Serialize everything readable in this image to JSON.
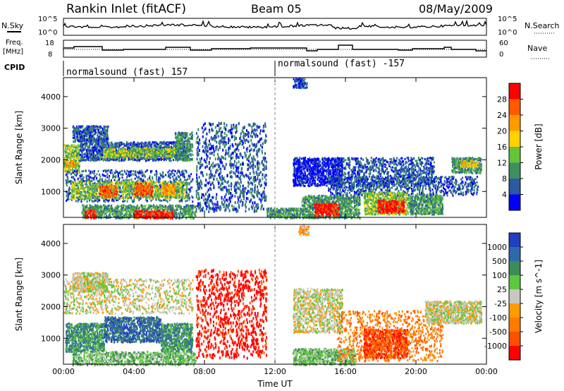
{
  "header": {
    "station": "Rankin Inlet (fitACF)",
    "beam": "Beam 05",
    "date": "08/May/2009"
  },
  "top_panels": {
    "left_labels": {
      "nsky": "N.Sky",
      "freq_line1": "Freq.",
      "freq_line2": "[MHz]",
      "cpid": "CPID"
    },
    "right_labels": {
      "nsearch": "N.Search",
      "nave": "Nave"
    },
    "noise_axis": {
      "top": "10^5",
      "bottom": "10^0"
    },
    "freq_axis": {
      "top": "18",
      "bottom": "8"
    },
    "nave_axis": {
      "top": "60",
      "bottom": "0"
    },
    "cpid_segments": [
      {
        "label": "normalsound (fast) 157",
        "start_hour": 0
      },
      {
        "label": "normalsound (fast) -157",
        "start_hour": 12
      }
    ]
  },
  "chart_data": [
    {
      "type": "heatmap",
      "name": "power",
      "xlabel": "",
      "ylabel": "Slant Range [km]",
      "x_range_hours": [
        0,
        24
      ],
      "ylim": [
        180,
        4600
      ],
      "x_ticks": [
        "00:00",
        "04:00",
        "08:00",
        "12:00",
        "16:00",
        "20:00",
        "00:00"
      ],
      "y_ticks": [
        1000,
        2000,
        3000,
        4000
      ],
      "colorbar": {
        "label": "Power [dB]",
        "ticks": [
          "28",
          "24",
          "20",
          "16",
          "12",
          "8",
          "4"
        ],
        "colors": [
          "#ff0000",
          "#ff5a00",
          "#ff9900",
          "#ffd200",
          "#66c33a",
          "#3c8f5e",
          "#2a5aa0",
          "#0000ff"
        ]
      },
      "patches": [
        {
          "t0": 0.0,
          "t1": 0.9,
          "r0": 1600,
          "r1": 2500,
          "level": 4
        },
        {
          "t0": 0.1,
          "t1": 0.6,
          "r0": 1800,
          "r1": 2000,
          "level": 2
        },
        {
          "t0": 0.9,
          "t1": 2.0,
          "r0": 2000,
          "r1": 2700,
          "level": 6
        },
        {
          "t0": 2.0,
          "t1": 7.0,
          "r0": 2000,
          "r1": 2600,
          "level": 6
        },
        {
          "t0": 2.2,
          "t1": 6.5,
          "r0": 2100,
          "r1": 2400,
          "level": 4
        },
        {
          "t0": 6.3,
          "t1": 7.3,
          "r0": 2000,
          "r1": 2900,
          "level": 5
        },
        {
          "t0": 0.5,
          "t1": 2.5,
          "r0": 2600,
          "r1": 3100,
          "level": 6
        },
        {
          "t0": 0.1,
          "t1": 7.3,
          "r0": 700,
          "r1": 1700,
          "level": 6
        },
        {
          "t0": 0.4,
          "t1": 7.0,
          "r0": 800,
          "r1": 1350,
          "level": 4
        },
        {
          "t0": 2.0,
          "t1": 3.0,
          "r0": 850,
          "r1": 1200,
          "level": 1
        },
        {
          "t0": 4.0,
          "t1": 5.0,
          "r0": 900,
          "r1": 1300,
          "level": 1
        },
        {
          "t0": 5.5,
          "t1": 6.3,
          "r0": 900,
          "r1": 1250,
          "level": 2
        },
        {
          "t0": 1.0,
          "t1": 7.5,
          "r0": 180,
          "r1": 600,
          "level": 5
        },
        {
          "t0": 1.2,
          "t1": 1.8,
          "r0": 180,
          "r1": 450,
          "level": 0
        },
        {
          "t0": 4.0,
          "t1": 6.2,
          "r0": 180,
          "r1": 420,
          "level": 0
        },
        {
          "t0": 7.5,
          "t1": 11.5,
          "r0": 400,
          "r1": 3200,
          "level": 6
        },
        {
          "t0": 11.5,
          "t1": 13.5,
          "r0": 180,
          "r1": 500,
          "level": 5
        },
        {
          "t0": 13.0,
          "t1": 15.8,
          "r0": 1200,
          "r1": 2100,
          "level": 7
        },
        {
          "t0": 13.5,
          "t1": 16.8,
          "r0": 180,
          "r1": 900,
          "level": 5
        },
        {
          "t0": 14.2,
          "t1": 15.6,
          "r0": 250,
          "r1": 650,
          "level": 0
        },
        {
          "t0": 15.5,
          "t1": 21.0,
          "r0": 1200,
          "r1": 2100,
          "level": 6
        },
        {
          "t0": 15.0,
          "t1": 23.5,
          "r0": 900,
          "r1": 1500,
          "level": 6
        },
        {
          "t0": 17.0,
          "t1": 19.5,
          "r0": 300,
          "r1": 1000,
          "level": 4
        },
        {
          "t0": 17.8,
          "t1": 19.3,
          "r0": 350,
          "r1": 750,
          "level": 0
        },
        {
          "t0": 19.5,
          "t1": 21.5,
          "r0": 300,
          "r1": 900,
          "level": 5
        },
        {
          "t0": 22.0,
          "t1": 23.7,
          "r0": 1600,
          "r1": 2100,
          "level": 5
        },
        {
          "t0": 22.5,
          "t1": 23.5,
          "r0": 1800,
          "r1": 2000,
          "level": 3
        },
        {
          "t0": 13.0,
          "t1": 13.8,
          "r0": 4300,
          "r1": 4600,
          "level": 6
        }
      ]
    },
    {
      "type": "heatmap",
      "name": "velocity",
      "xlabel": "Time UT",
      "ylabel": "Slant Range [km]",
      "x_range_hours": [
        0,
        24
      ],
      "ylim": [
        180,
        4600
      ],
      "x_ticks": [
        "00:00",
        "04:00",
        "08:00",
        "12:00",
        "16:00",
        "20:00",
        "00:00"
      ],
      "y_ticks": [
        1000,
        2000,
        3000,
        4000
      ],
      "colorbar": {
        "label": "Velocity [m s^-1]",
        "ticks": [
          "1000",
          "500",
          "100",
          "25",
          "-25",
          "-100",
          "-500",
          "-1000"
        ],
        "colors": [
          "#1f3fbf",
          "#2e6aa8",
          "#3d8a5a",
          "#5cc83c",
          "#c8c8c0",
          "#ff9a00",
          "#ff7a00",
          "#ff5000",
          "#ff0000"
        ]
      },
      "patches": [
        {
          "t0": 0.0,
          "t1": 7.3,
          "r0": 1800,
          "r1": 2900,
          "level": 4
        },
        {
          "t0": 0.5,
          "t1": 2.5,
          "r0": 2500,
          "r1": 3100,
          "level": 4
        },
        {
          "t0": 0.1,
          "t1": 2.3,
          "r0": 600,
          "r1": 1500,
          "level": 2
        },
        {
          "t0": 2.3,
          "t1": 5.5,
          "r0": 900,
          "r1": 1700,
          "level": 1
        },
        {
          "t0": 5.5,
          "t1": 7.3,
          "r0": 600,
          "r1": 1500,
          "level": 2
        },
        {
          "t0": 0.5,
          "t1": 7.5,
          "r0": 180,
          "r1": 600,
          "level": 3
        },
        {
          "t0": 7.5,
          "t1": 11.5,
          "r0": 400,
          "r1": 3200,
          "level": 8
        },
        {
          "t0": 13.0,
          "t1": 15.8,
          "r0": 1200,
          "r1": 2600,
          "level": 4
        },
        {
          "t0": 13.0,
          "t1": 16.5,
          "r0": 180,
          "r1": 700,
          "level": 3
        },
        {
          "t0": 15.5,
          "t1": 21.5,
          "r0": 300,
          "r1": 1900,
          "level": 6
        },
        {
          "t0": 17.0,
          "t1": 19.5,
          "r0": 400,
          "r1": 1300,
          "level": 7
        },
        {
          "t0": 20.5,
          "t1": 23.7,
          "r0": 1500,
          "r1": 2200,
          "level": 4
        },
        {
          "t0": 13.3,
          "t1": 13.9,
          "r0": 4300,
          "r1": 4600,
          "level": 5
        }
      ]
    }
  ]
}
